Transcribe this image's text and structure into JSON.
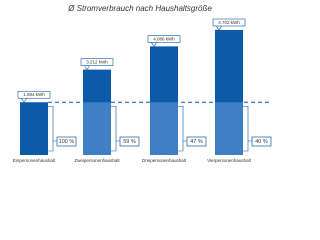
{
  "chart_data": {
    "type": "bar",
    "title": "Ø Stromverbrauch nach Haushaltsgröße",
    "categories": [
      "Einpersonenhaushalt",
      "Zweipersonenhaushalt",
      "Dreipersonenhaushalt",
      "Vierpersonenhaushalt"
    ],
    "values": [
      1984,
      3212,
      4086,
      4702
    ],
    "value_labels": [
      "1.984 kWh",
      "3.212 kWh",
      "4.086 kWh",
      "4.702 kWh"
    ],
    "percent_values": [
      100,
      59,
      47,
      40
    ],
    "percent_labels": [
      "100 %",
      "59 %",
      "47 %",
      "40 %"
    ],
    "color": "#0b5aa8",
    "base_color": "#3f7fc4"
  }
}
